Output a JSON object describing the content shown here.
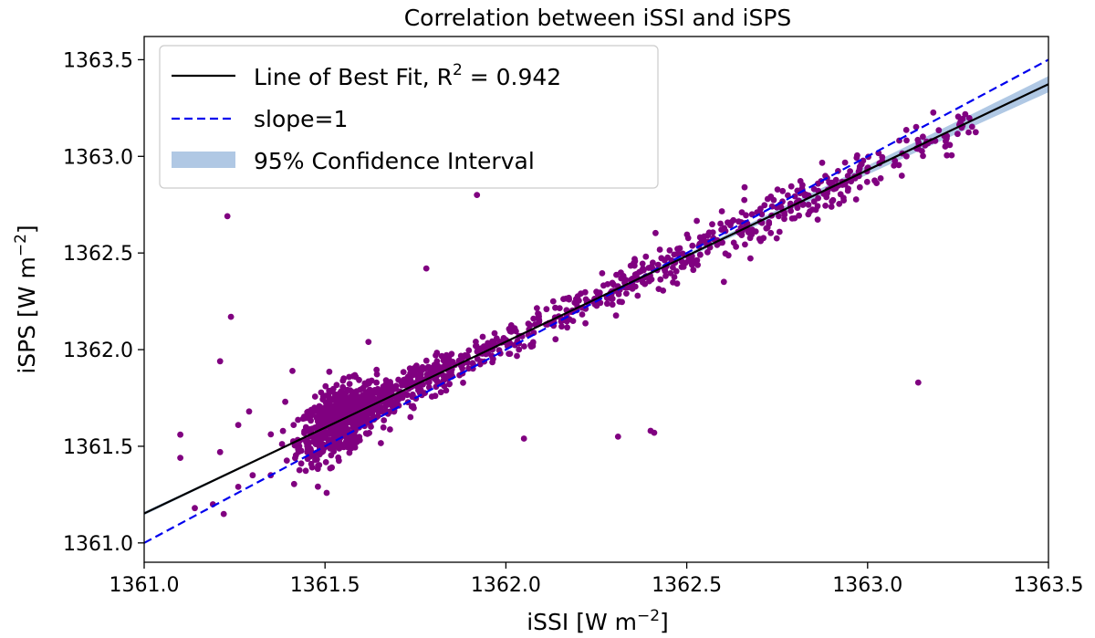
{
  "chart_data": {
    "type": "scatter",
    "title": "Correlation between iSSI and iSPS",
    "xlabel": {
      "main": "iSSI [W m",
      "sup": "−2",
      "tail": "]"
    },
    "ylabel": {
      "main": "iSPS [W m",
      "sup": "−2",
      "tail": "]"
    },
    "xlim": [
      1361.0,
      1363.5
    ],
    "ylim": [
      1360.9,
      1363.62
    ],
    "xticks": [
      1361.0,
      1361.5,
      1362.0,
      1362.5,
      1363.0,
      1363.5
    ],
    "xtick_labels": [
      "1361.0",
      "1361.5",
      "1362.0",
      "1362.5",
      "1363.0",
      "1363.5"
    ],
    "yticks": [
      1361.0,
      1361.5,
      1362.0,
      1362.5,
      1363.0,
      1363.5
    ],
    "ytick_labels": [
      "1361.0",
      "1361.5",
      "1362.0",
      "1362.5",
      "1363.0",
      "1363.5"
    ],
    "grid": false,
    "legend_position": "top-left",
    "legend": [
      {
        "label_main": "Line of Best Fit, R",
        "label_sup": "2",
        "label_tail": " = 0.942",
        "style": "solid",
        "color": "#000000"
      },
      {
        "label_main": "slope=1",
        "label_sup": "",
        "label_tail": "",
        "style": "dashed",
        "color": "#0000ee"
      },
      {
        "label_main": "95% Confidence Interval",
        "label_sup": "",
        "label_tail": "",
        "style": "band",
        "color": "#b0c8e4"
      }
    ],
    "fit_line": {
      "slope": 0.8884,
      "intercept": 152.04,
      "color": "#000000"
    },
    "identity_line": {
      "slope": 1,
      "intercept": 0,
      "color": "#0000ee"
    },
    "confidence_band": {
      "half_width_at_center": 0.003,
      "center_x": 1361.7,
      "growth": 0.012,
      "color": "#b0c8e4"
    },
    "point_color": "#800080",
    "outliers": [
      [
        1361.23,
        1362.69
      ],
      [
        1361.24,
        1362.17
      ],
      [
        1361.21,
        1361.94
      ],
      [
        1361.21,
        1361.47
      ],
      [
        1361.1,
        1361.56
      ],
      [
        1361.1,
        1361.44
      ],
      [
        1361.26,
        1361.61
      ],
      [
        1361.29,
        1361.68
      ],
      [
        1361.41,
        1361.89
      ],
      [
        1361.39,
        1361.73
      ],
      [
        1361.62,
        1362.04
      ],
      [
        1361.78,
        1362.42
      ],
      [
        1361.92,
        1362.8
      ],
      [
        1362.05,
        1361.54
      ],
      [
        1362.31,
        1361.55
      ],
      [
        1362.4,
        1361.58
      ],
      [
        1362.41,
        1361.57
      ],
      [
        1362.66,
        1362.84
      ],
      [
        1363.14,
        1361.83
      ],
      [
        1361.3,
        1361.35
      ],
      [
        1361.35,
        1361.35
      ],
      [
        1361.26,
        1361.29
      ],
      [
        1361.14,
        1361.18
      ],
      [
        1361.22,
        1361.15
      ],
      [
        1361.19,
        1361.2
      ]
    ],
    "clusters": [
      {
        "x_from": 1361.45,
        "x_to": 1361.62,
        "count": 620,
        "spread": 0.085
      },
      {
        "x_from": 1361.6,
        "x_to": 1361.85,
        "count": 260,
        "spread": 0.055
      },
      {
        "x_from": 1361.85,
        "x_to": 1362.4,
        "count": 230,
        "spread": 0.045
      },
      {
        "x_from": 1362.4,
        "x_to": 1363.0,
        "count": 240,
        "spread": 0.06
      },
      {
        "x_from": 1363.0,
        "x_to": 1363.3,
        "count": 55,
        "spread": 0.05
      }
    ]
  }
}
